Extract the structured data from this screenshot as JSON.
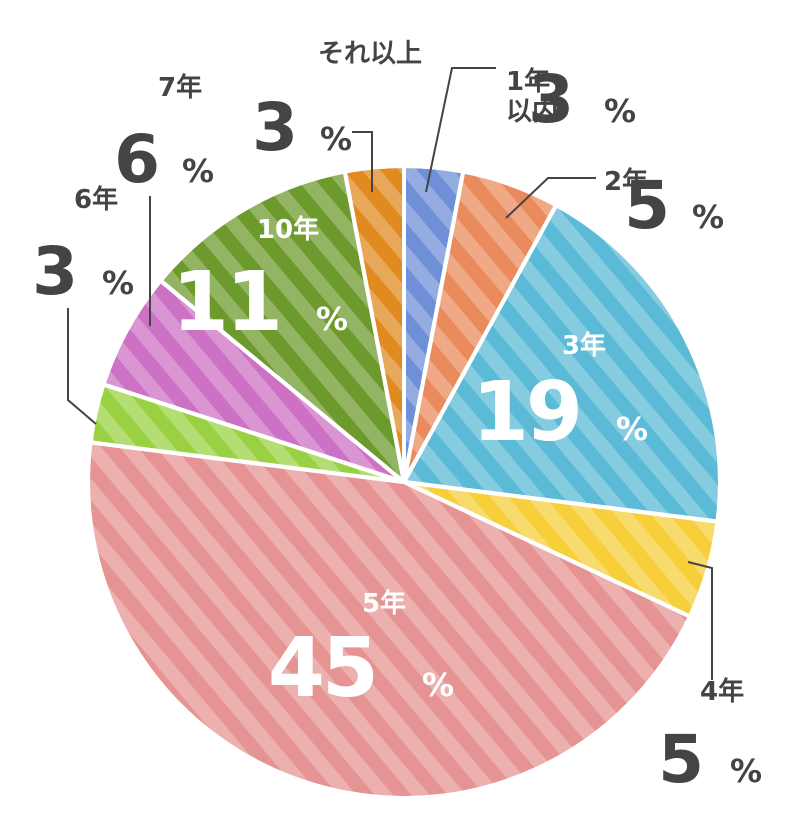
{
  "chart_data": {
    "type": "pie",
    "start_angle_deg": 0,
    "direction": "clockwise",
    "percent_suffix": "%",
    "slices": [
      {
        "category": "1年以内",
        "label_lines": [
          "1年",
          "以内"
        ],
        "value": 3,
        "value_text": "3",
        "color": "#6f8fd6"
      },
      {
        "category": "2年",
        "label_lines": [
          "2年"
        ],
        "value": 5,
        "value_text": "5",
        "color": "#e98b5c"
      },
      {
        "category": "3年",
        "label_lines": [
          "3年"
        ],
        "value": 19,
        "value_text": "19",
        "color": "#5bbad6"
      },
      {
        "category": "4年",
        "label_lines": [
          "4年"
        ],
        "value": 5,
        "value_text": "5",
        "color": "#f6cf3a"
      },
      {
        "category": "5年",
        "label_lines": [
          "5年"
        ],
        "value": 45,
        "value_text": "45",
        "color": "#e69493"
      },
      {
        "category": "6年",
        "label_lines": [
          "6年"
        ],
        "value": 3,
        "value_text": "3",
        "color": "#9ad142"
      },
      {
        "category": "7年",
        "label_lines": [
          "7年"
        ],
        "value": 6,
        "value_text": "6",
        "color": "#cc71c4"
      },
      {
        "category": "10年",
        "label_lines": [
          "10年"
        ],
        "value": 11,
        "value_text": "11",
        "color": "#6d9a2d"
      },
      {
        "category": "それ以上",
        "label_lines": [
          "それ以上"
        ],
        "value": 3,
        "value_text": "3",
        "color": "#e08a1f"
      }
    ]
  }
}
